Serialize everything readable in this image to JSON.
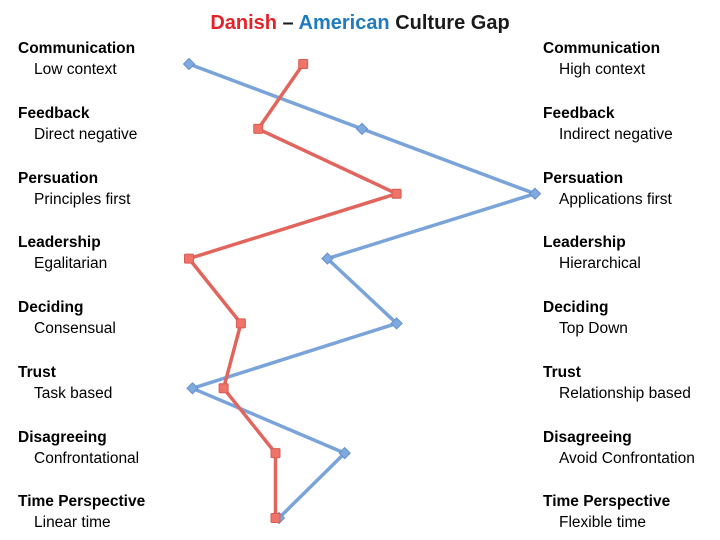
{
  "title": {
    "segments": [
      {
        "text": "Danish",
        "color": "#E2242A"
      },
      {
        "text": " – ",
        "color": "#1A1A1A"
      },
      {
        "text": "American",
        "color": "#1F7AC0"
      },
      {
        "text": " Culture Gap",
        "color": "#1A1A1A"
      }
    ]
  },
  "rows": [
    {
      "dimension": "Communication",
      "left": "Low context",
      "right": "High context"
    },
    {
      "dimension": "Feedback",
      "left": "Direct negative",
      "right": "Indirect negative"
    },
    {
      "dimension": "Persuation",
      "left": "Principles first",
      "right": "Applications first"
    },
    {
      "dimension": "Leadership",
      "left": "Egalitarian",
      "right": "Hierarchical"
    },
    {
      "dimension": "Deciding",
      "left": "Consensual",
      "right": "Top Down"
    },
    {
      "dimension": "Trust",
      "left": "Task based",
      "right": "Relationship based"
    },
    {
      "dimension": "Disagreeing",
      "left": "Confrontational",
      "right": "Avoid Confrontation"
    },
    {
      "dimension": "Time Perspective",
      "left": "Linear time",
      "right": "Flexible time"
    }
  ],
  "chart_data": {
    "type": "line",
    "title": "Danish – American Culture Gap",
    "orientation": "horizontal-value-vertical-categories",
    "categories": [
      "Communication",
      "Feedback",
      "Persuation",
      "Leadership",
      "Deciding",
      "Trust",
      "Disagreeing",
      "Time Perspective"
    ],
    "value_range": [
      0,
      100
    ],
    "axes_visible": false,
    "grid": false,
    "legend": "encoded-in-title-colors",
    "series": [
      {
        "name": "Danish",
        "marker": "square",
        "line_color": "#E2655D",
        "marker_fill": "#EE7368",
        "marker_stroke": "#D95B52",
        "values": [
          33,
          20,
          60,
          0,
          15,
          10,
          25,
          25
        ]
      },
      {
        "name": "American",
        "marker": "diamond",
        "line_color": "#7AA3DA",
        "marker_fill": "#7FA9DF",
        "marker_stroke": "#6590CE",
        "values": [
          0,
          50,
          100,
          40,
          60,
          1,
          45,
          26
        ]
      }
    ]
  }
}
